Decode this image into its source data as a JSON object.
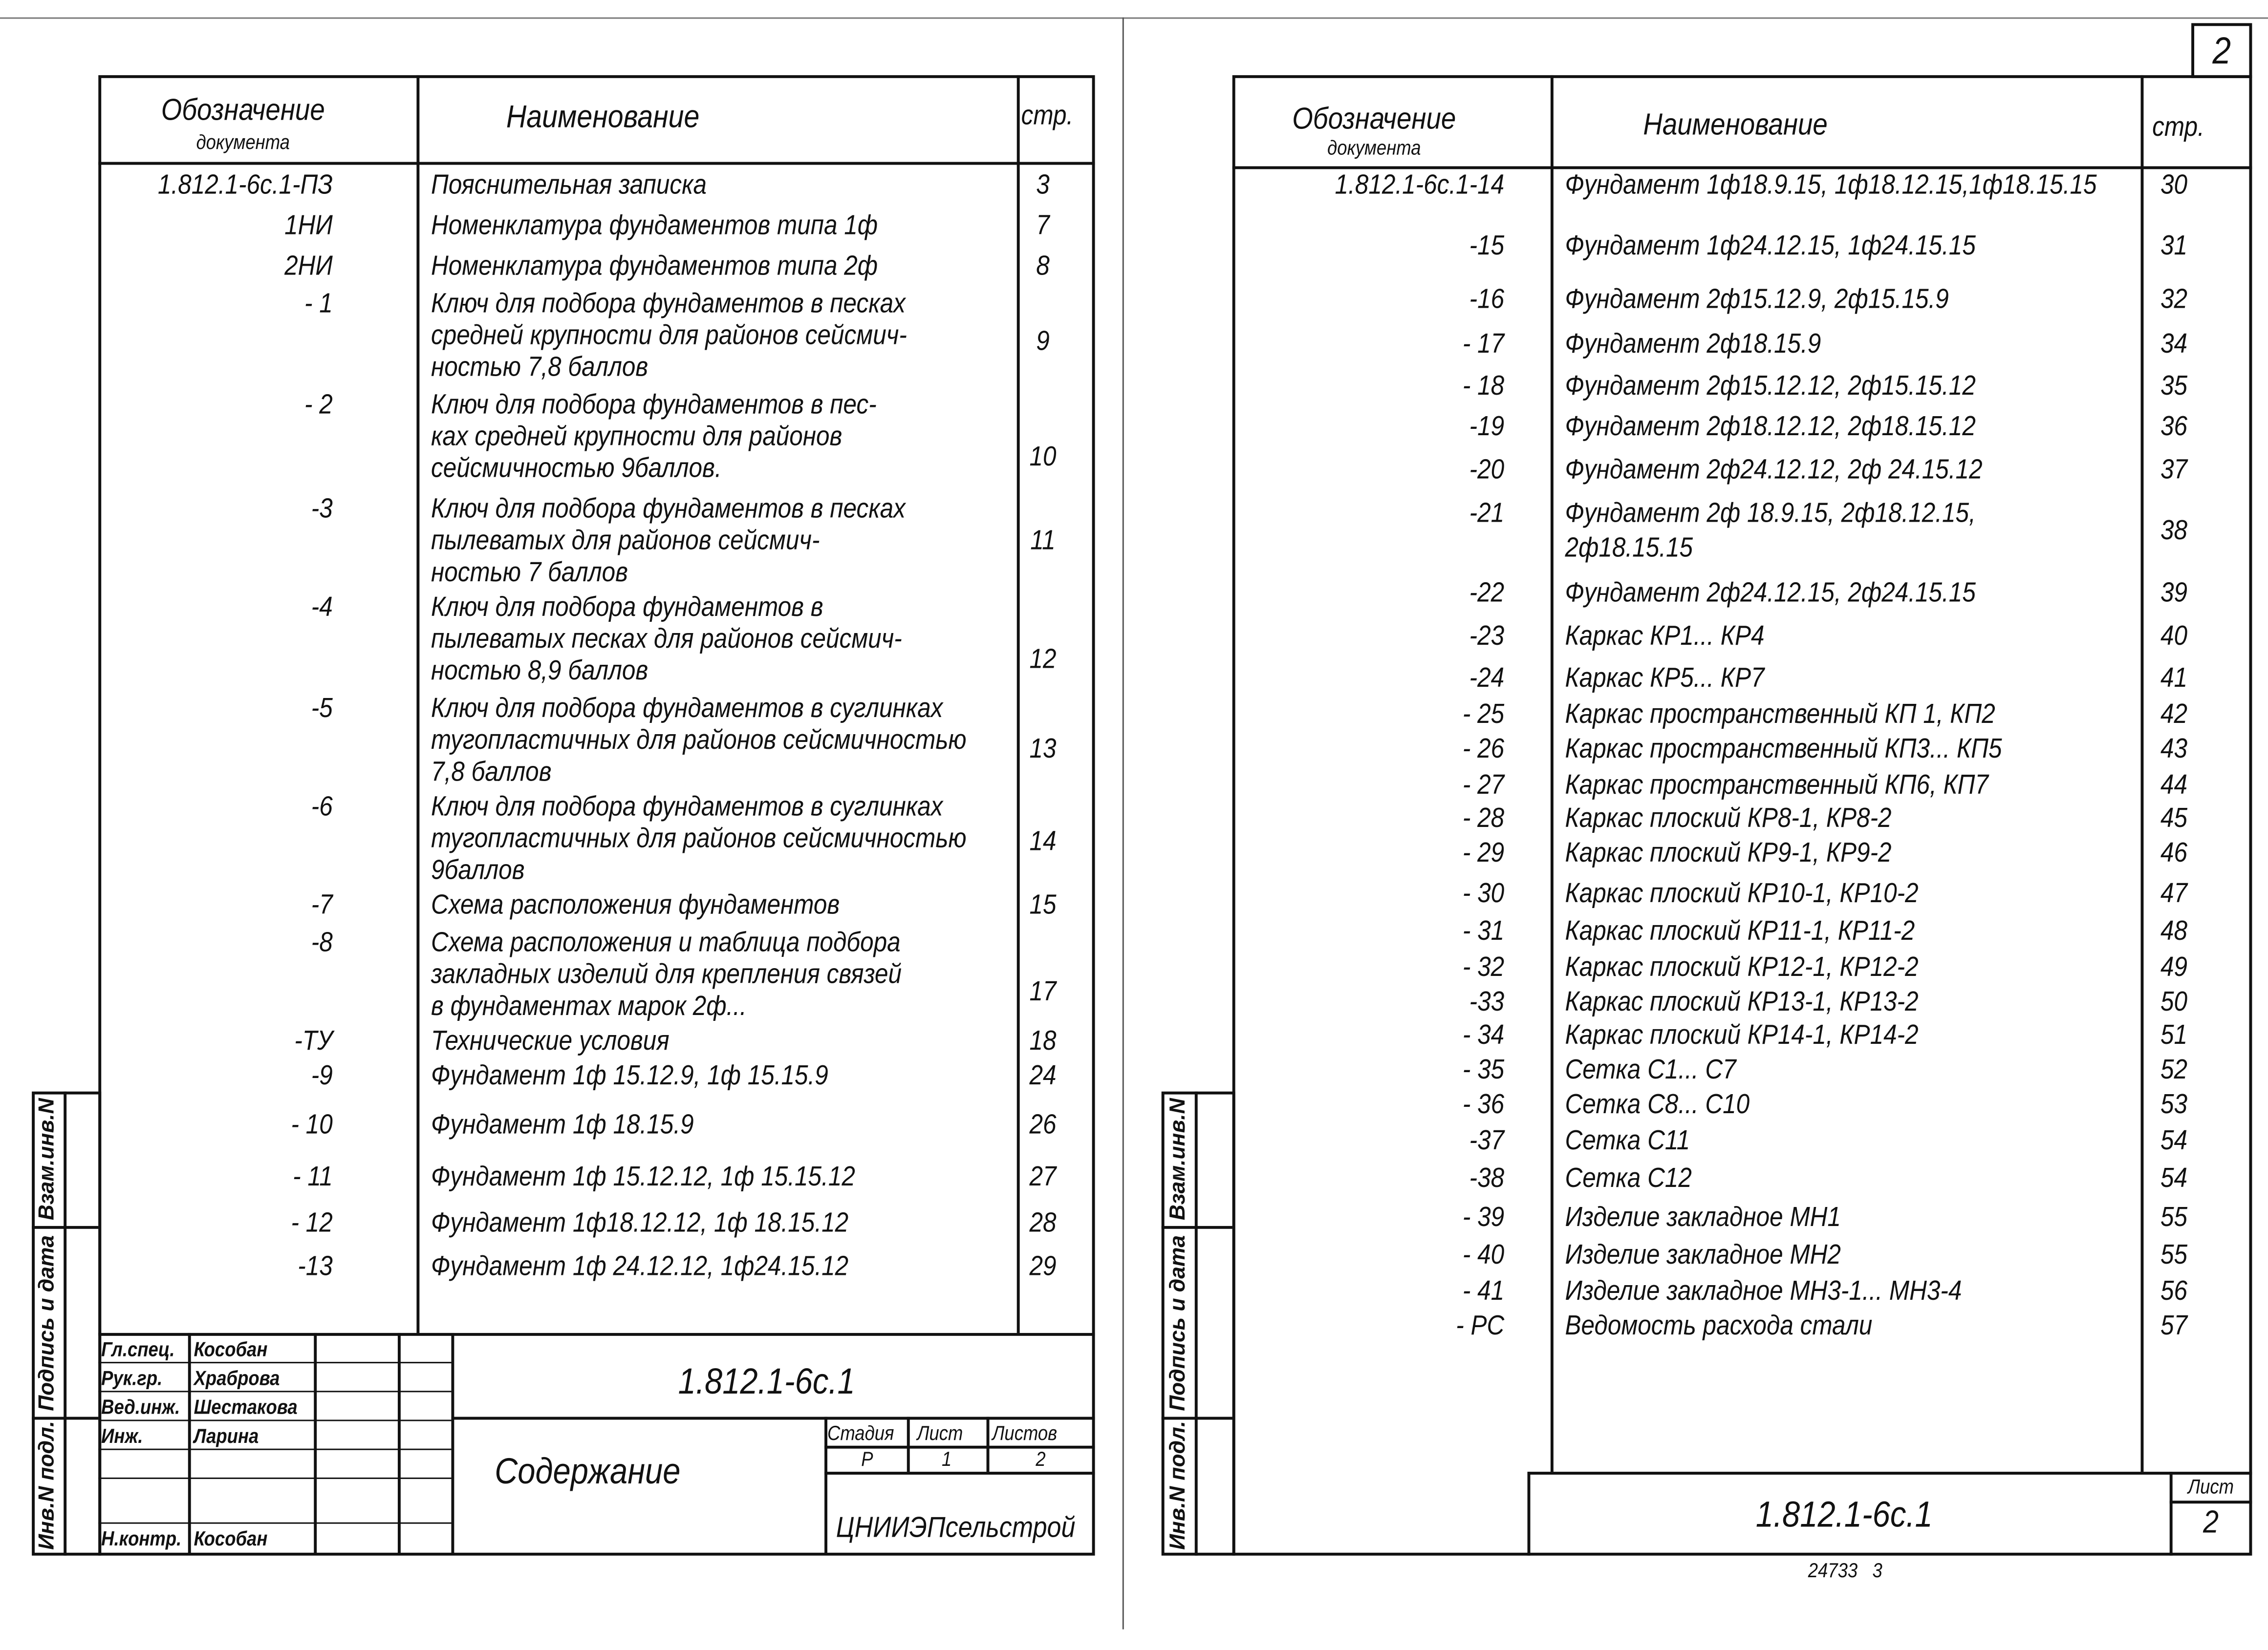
{
  "sheet_number_top": "2",
  "side_stamp": {
    "col1": "Инв.N подл.",
    "col2": "Подпись и дата",
    "col3": "Взам.инв.N"
  },
  "left_sheet": {
    "header": {
      "designation": "Обозначение",
      "designation2": "документа",
      "name": "Наименование",
      "page": "стр."
    },
    "rows": [
      {
        "code": "1.812.1-6с.1-ПЗ",
        "name": [
          "Пояснительная записка"
        ],
        "page": "3"
      },
      {
        "code": "1НИ",
        "name": [
          "Номенклатура фундаментов типа 1ф"
        ],
        "page": "7"
      },
      {
        "code": "2НИ",
        "name": [
          "Номенклатура фундаментов типа 2ф"
        ],
        "page": "8"
      },
      {
        "code": "- 1",
        "name": [
          "Ключ для подбора фундаментов в песках",
          "средней крупности для районов сейсмич-",
          "ностью 7,8 баллов"
        ],
        "page": "9"
      },
      {
        "code": "- 2",
        "name": [
          "Ключ для подбора фундаментов в пес-",
          "ках средней крупности для районов",
          "сейсмичностью 9баллов."
        ],
        "page": "10"
      },
      {
        "code": "-3",
        "name": [
          "Ключ для подбора фундаментов в песках",
          "пылеватых для районов сейсмич-",
          "ностью 7 баллов"
        ],
        "page": "11"
      },
      {
        "code": "-4",
        "name": [
          "Ключ для подбора фундаментов в",
          "пылеватых песках для районов сейсмич-",
          "ностью 8,9 баллов"
        ],
        "page": "12"
      },
      {
        "code": "-5",
        "name": [
          "Ключ для подбора фундаментов в суглинках",
          "тугопластичных для районов сейсмичностью",
          "7,8 баллов"
        ],
        "page": "13"
      },
      {
        "code": "-6",
        "name": [
          "Ключ для подбора фундаментов в суглинках",
          "тугопластичных для районов сейсмичностью",
          "9баллов"
        ],
        "page": "14"
      },
      {
        "code": "-7",
        "name": [
          "Схема расположения фундаментов"
        ],
        "page": "15"
      },
      {
        "code": "-8",
        "name": [
          "Схема расположения и таблица подбора",
          "закладных изделий для крепления связей",
          "в фундаментах марок 2ф..."
        ],
        "page": "17"
      },
      {
        "code": "-ТУ",
        "name": [
          "Технические условия"
        ],
        "page": "18"
      },
      {
        "code": "-9",
        "name": [
          "Фундамент 1ф 15.12.9, 1ф 15.15.9"
        ],
        "page": "24"
      },
      {
        "code": "- 10",
        "name": [
          "Фундамент 1ф 18.15.9"
        ],
        "page": "26"
      },
      {
        "code": "- 11",
        "name": [
          "Фундамент 1ф 15.12.12, 1ф 15.15.12"
        ],
        "page": "27"
      },
      {
        "code": "- 12",
        "name": [
          "Фундамент 1ф18.12.12, 1ф 18.15.12"
        ],
        "page": "28"
      },
      {
        "code": "-13",
        "name": [
          "Фундамент 1ф 24.12.12, 1ф24.15.12"
        ],
        "page": "29"
      }
    ],
    "title_block": {
      "people": [
        {
          "role": "Гл.спец.",
          "name": "Кособан"
        },
        {
          "role": "Рук.гр.",
          "name": "Храброва"
        },
        {
          "role": "Вед.инж.",
          "name": "Шестакова"
        },
        {
          "role": "Инж.",
          "name": "Ларина"
        },
        {
          "role": "",
          "name": ""
        },
        {
          "role": "",
          "name": ""
        },
        {
          "role": "Н.контр.",
          "name": "Кособан"
        }
      ],
      "code": "1.812.1-6с.1",
      "title": "Содержание",
      "stage_label": "Стадия",
      "sheet_label": "Лист",
      "sheets_label": "Листов",
      "stage": "Р",
      "sheet": "1",
      "sheets": "2",
      "org": "ЦНИИЭПсельстрой"
    }
  },
  "right_sheet": {
    "header": {
      "designation": "Обозначение",
      "designation2": "документа",
      "name": "Наименование",
      "page": "стр."
    },
    "rows": [
      {
        "code": "1.812.1-6с.1-14",
        "name": [
          "Фундамент 1ф18.9.15, 1ф18.12.15,1ф18.15.15"
        ],
        "page": "30"
      },
      {
        "code": "-15",
        "name": [
          "Фундамент 1ф24.12.15, 1ф24.15.15"
        ],
        "page": "31"
      },
      {
        "code": "-16",
        "name": [
          "Фундамент 2ф15.12.9, 2ф15.15.9"
        ],
        "page": "32"
      },
      {
        "code": "- 17",
        "name": [
          "Фундамент 2ф18.15.9"
        ],
        "page": "34"
      },
      {
        "code": "- 18",
        "name": [
          "Фундамент 2ф15.12.12, 2ф15.15.12"
        ],
        "page": "35"
      },
      {
        "code": "-19",
        "name": [
          "Фундамент 2ф18.12.12, 2ф18.15.12"
        ],
        "page": "36"
      },
      {
        "code": "-20",
        "name": [
          "Фундамент 2ф24.12.12, 2ф 24.15.12"
        ],
        "page": "37"
      },
      {
        "code": "-21",
        "name": [
          "Фундамент 2ф 18.9.15, 2ф18.12.15,",
          "2ф18.15.15"
        ],
        "page": "38"
      },
      {
        "code": "-22",
        "name": [
          "Фундамент 2ф24.12.15, 2ф24.15.15"
        ],
        "page": "39"
      },
      {
        "code": "-23",
        "name": [
          "Каркас КР1... КР4"
        ],
        "page": "40"
      },
      {
        "code": "-24",
        "name": [
          "Каркас КР5... КР7"
        ],
        "page": "41"
      },
      {
        "code": "- 25",
        "name": [
          "Каркас пространственный КП 1, КП2"
        ],
        "page": "42"
      },
      {
        "code": "- 26",
        "name": [
          "Каркас пространственный КП3... КП5"
        ],
        "page": "43"
      },
      {
        "code": "- 27",
        "name": [
          "Каркас пространственный КП6, КП7"
        ],
        "page": "44"
      },
      {
        "code": "- 28",
        "name": [
          "Каркас плоский КР8-1, КР8-2"
        ],
        "page": "45"
      },
      {
        "code": "- 29",
        "name": [
          "Каркас плоский КР9-1, КР9-2"
        ],
        "page": "46"
      },
      {
        "code": "- 30",
        "name": [
          "Каркас плоский КР10-1, КР10-2"
        ],
        "page": "47"
      },
      {
        "code": "- 31",
        "name": [
          "Каркас плоский КР11-1, КР11-2"
        ],
        "page": "48"
      },
      {
        "code": "- 32",
        "name": [
          "Каркас плоский КР12-1, КР12-2"
        ],
        "page": "49"
      },
      {
        "code": "-33",
        "name": [
          "Каркас плоский КР13-1, КР13-2"
        ],
        "page": "50"
      },
      {
        "code": "- 34",
        "name": [
          "Каркас плоский КР14-1, КР14-2"
        ],
        "page": "51"
      },
      {
        "code": "- 35",
        "name": [
          "Сетка С1... С7"
        ],
        "page": "52"
      },
      {
        "code": "- 36",
        "name": [
          "Сетка С8... С10"
        ],
        "page": "53"
      },
      {
        "code": "-37",
        "name": [
          "Сетка С11"
        ],
        "page": "54"
      },
      {
        "code": "-38",
        "name": [
          "Сетка С12"
        ],
        "page": "54"
      },
      {
        "code": "- 39",
        "name": [
          "Изделие закладное МН1"
        ],
        "page": "55"
      },
      {
        "code": "- 40",
        "name": [
          "Изделие закладное МН2"
        ],
        "page": "55"
      },
      {
        "code": "- 41",
        "name": [
          "Изделие закладное МН3-1... МН3-4"
        ],
        "page": "56"
      },
      {
        "code": "- РС",
        "name": [
          "Ведомость расхода стали"
        ],
        "page": "57"
      }
    ],
    "footer": {
      "code": "1.812.1-6с.1",
      "sheet_label": "Лист",
      "sheet": "2"
    }
  },
  "bottom_note": "24733   3"
}
